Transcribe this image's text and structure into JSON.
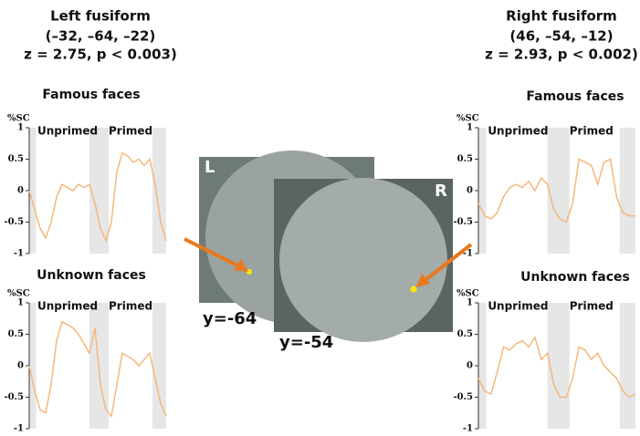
{
  "panels": [
    {
      "region": "Left fusiform",
      "coords": "(–32, –64, –22)",
      "stats": "z = 2.75, p < 0.003)"
    },
    {
      "region": "Right fusiform",
      "coords": "(46, –54, –12)",
      "stats": "z = 2.93, p < 0.002)"
    }
  ],
  "images": [
    {
      "hemisphere": "L",
      "slice": "y=-64"
    },
    {
      "hemisphere": "R",
      "slice": "y=-54"
    }
  ],
  "chart_data": [
    {
      "type": "line",
      "title": "Famous faces",
      "y_label": "%SC",
      "annotations": [
        "Unprimed",
        "Primed"
      ],
      "color": "#f5b77c",
      "ylim": [
        -1,
        1
      ],
      "yticks": [
        -1,
        -0.5,
        0,
        0.5,
        1
      ],
      "values": [
        0,
        -0.3,
        -0.6,
        -0.75,
        -0.5,
        -0.1,
        0.1,
        0.05,
        0.0,
        0.1,
        0.05,
        0.1,
        -0.2,
        -0.6,
        -0.8,
        -0.5,
        0.3,
        0.6,
        0.55,
        0.45,
        0.5,
        0.4,
        0.5,
        0.1,
        -0.5,
        -0.8
      ]
    },
    {
      "type": "line",
      "title": "Unknown faces",
      "y_label": "%SC",
      "annotations": [
        "Unprimed",
        "Primed"
      ],
      "color": "#f5b77c",
      "ylim": [
        -1,
        1
      ],
      "yticks": [
        -1,
        -0.5,
        0,
        0.5,
        1
      ],
      "values": [
        0,
        -0.4,
        -0.7,
        -0.75,
        -0.3,
        0.4,
        0.7,
        0.65,
        0.6,
        0.5,
        0.35,
        0.2,
        0.6,
        -0.3,
        -0.7,
        -0.8,
        -0.3,
        0.2,
        0.15,
        0.1,
        0.0,
        0.1,
        0.2,
        -0.2,
        -0.6,
        -0.8
      ]
    },
    {
      "type": "line",
      "title": "Famous faces",
      "y_label": "%SC",
      "annotations": [
        "Unprimed",
        "Primed"
      ],
      "color": "#f5b77c",
      "ylim": [
        -1,
        1
      ],
      "yticks": [
        -1,
        -0.5,
        0,
        0.5,
        1
      ],
      "values": [
        -0.2,
        -0.4,
        -0.45,
        -0.35,
        -0.1,
        0.05,
        0.1,
        0.05,
        0.15,
        0.0,
        0.2,
        0.1,
        -0.3,
        -0.45,
        -0.5,
        -0.2,
        0.5,
        0.45,
        0.4,
        0.1,
        0.45,
        0.5,
        -0.1,
        -0.35,
        -0.4,
        -0.4
      ]
    },
    {
      "type": "line",
      "title": "Unknown faces",
      "y_label": "%SC",
      "annotations": [
        "Unprimed",
        "Primed"
      ],
      "color": "#f5b77c",
      "ylim": [
        -1,
        1
      ],
      "yticks": [
        -1,
        -0.5,
        0,
        0.5,
        1
      ],
      "values": [
        -0.2,
        -0.4,
        -0.45,
        -0.1,
        0.3,
        0.25,
        0.35,
        0.4,
        0.3,
        0.45,
        0.1,
        0.2,
        -0.3,
        -0.5,
        -0.5,
        -0.2,
        0.3,
        0.25,
        0.1,
        0.2,
        0.0,
        -0.1,
        -0.2,
        -0.4,
        -0.5,
        -0.45
      ]
    }
  ]
}
